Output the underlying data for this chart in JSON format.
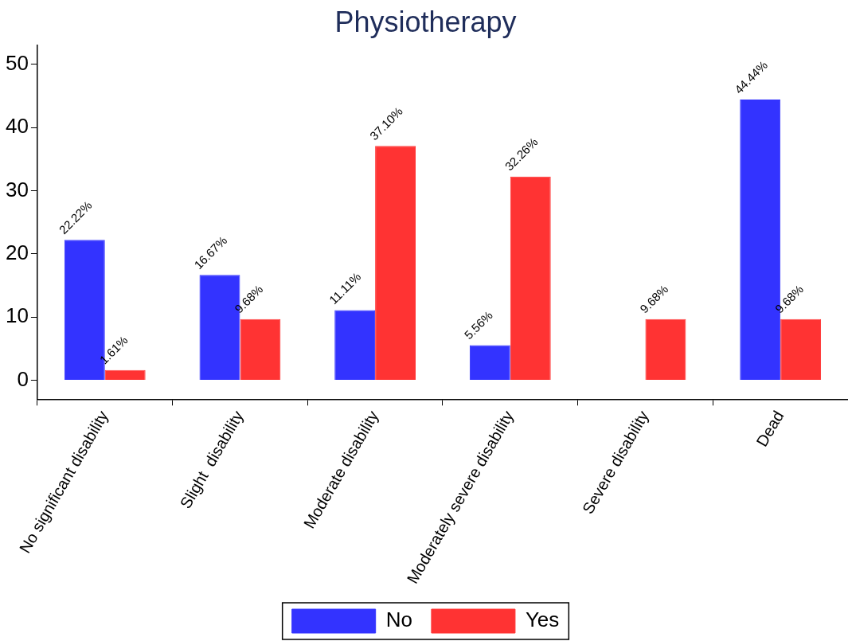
{
  "chart_data": {
    "type": "bar",
    "title": "Physiotherapy",
    "categories": [
      "No significant disability",
      "Slight  disability",
      "Moderate disability",
      "Moderately severe disability",
      "Severe disability",
      "Dead"
    ],
    "series": [
      {
        "name": "No",
        "color": "#3333ff",
        "values": [
          22.22,
          16.67,
          11.11,
          5.56,
          null,
          44.44
        ],
        "value_labels": [
          "22.22%",
          "16.67%",
          "11.11%",
          "5.56%",
          null,
          "44.44%"
        ]
      },
      {
        "name": "Yes",
        "color": "#ff3333",
        "values": [
          1.61,
          9.68,
          37.1,
          32.26,
          9.68,
          9.68
        ],
        "value_labels": [
          "1.61%",
          "9.68%",
          "37.10%",
          "32.26%",
          "9.68%",
          "9.68%"
        ]
      }
    ],
    "ylim": [
      -3,
      53
    ],
    "yticks": [
      0,
      10,
      20,
      30,
      40,
      50
    ],
    "grid": false,
    "legend": "bottom"
  }
}
